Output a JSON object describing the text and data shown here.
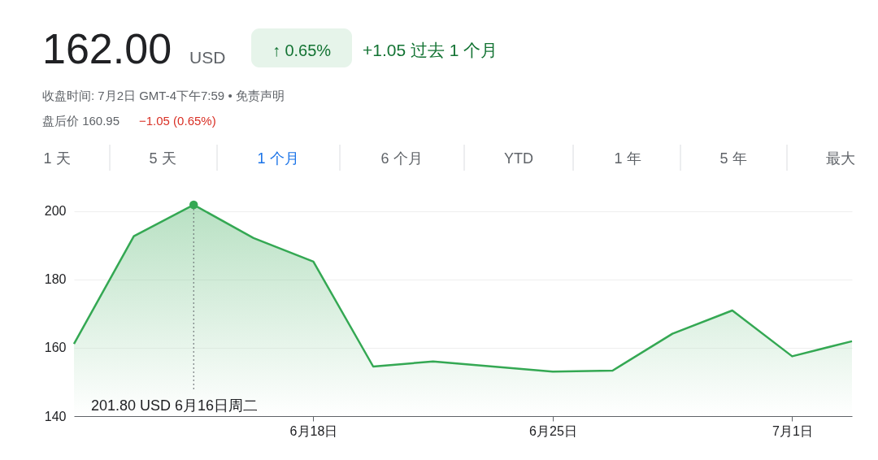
{
  "chart_data": {
    "type": "area",
    "categories": [
      null,
      null,
      null,
      null,
      "6月18日",
      null,
      null,
      null,
      "6月25日",
      null,
      null,
      null,
      "7月1日",
      null
    ],
    "series": [
      {
        "color": "#34a853",
        "values": [
          161.1,
          192.6,
          201.8,
          192.1,
          185.2,
          154.5,
          156.0,
          154.5,
          153.0,
          153.3,
          164.1,
          170.9,
          157.5,
          161.9
        ]
      }
    ],
    "ylim": [
      140,
      201.8
    ],
    "yticks": [
      140,
      160,
      180,
      200
    ],
    "grid": "y",
    "annotations": [
      "162.00",
      "USD",
      "↑ 0.65%",
      "+1.05 过去 1 个月",
      "收盘时间: 7月2日 GMT-4下午7:59 • 免责声明",
      "盘后价 160.95",
      "−1.05 (0.65%)",
      "1 天",
      "5 天",
      "1 个月",
      "6 个月",
      "YTD",
      "1 年",
      "5 年",
      "最大",
      "201.80 USD  6月16日周二"
    ]
  }
}
